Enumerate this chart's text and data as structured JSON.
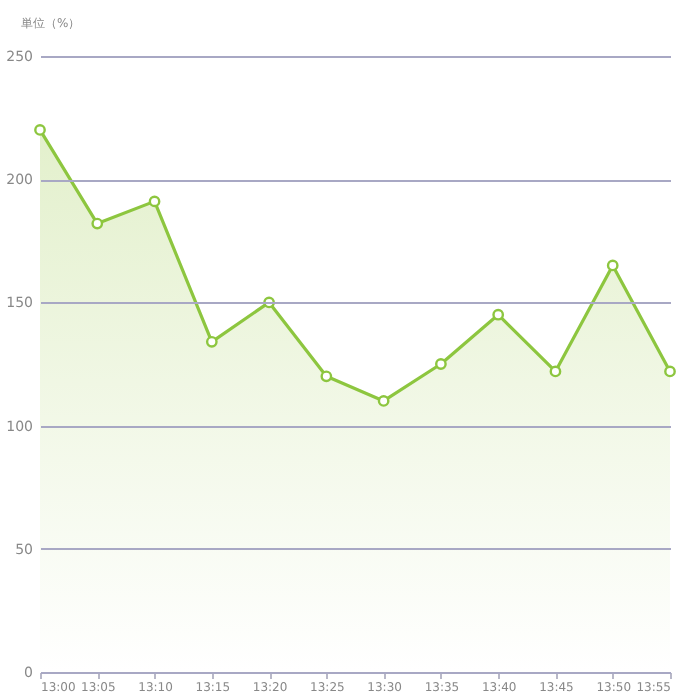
{
  "chart_data": {
    "type": "area",
    "ylabel": "単位（%）",
    "categories": [
      "13:00",
      "13:05",
      "13:10",
      "13:15",
      "13:20",
      "13:25",
      "13:30",
      "13:35",
      "13:40",
      "13:45",
      "13:50",
      "13:55"
    ],
    "series": [
      {
        "color": "#8dc63f",
        "values": [
          220,
          182,
          191,
          134,
          150,
          120,
          110,
          125,
          145,
          122,
          165,
          122
        ]
      }
    ],
    "ylim": [
      0,
      250
    ],
    "yticks": [
      0,
      50,
      100,
      150,
      200,
      250
    ],
    "grid": "y",
    "marker": "circle"
  }
}
